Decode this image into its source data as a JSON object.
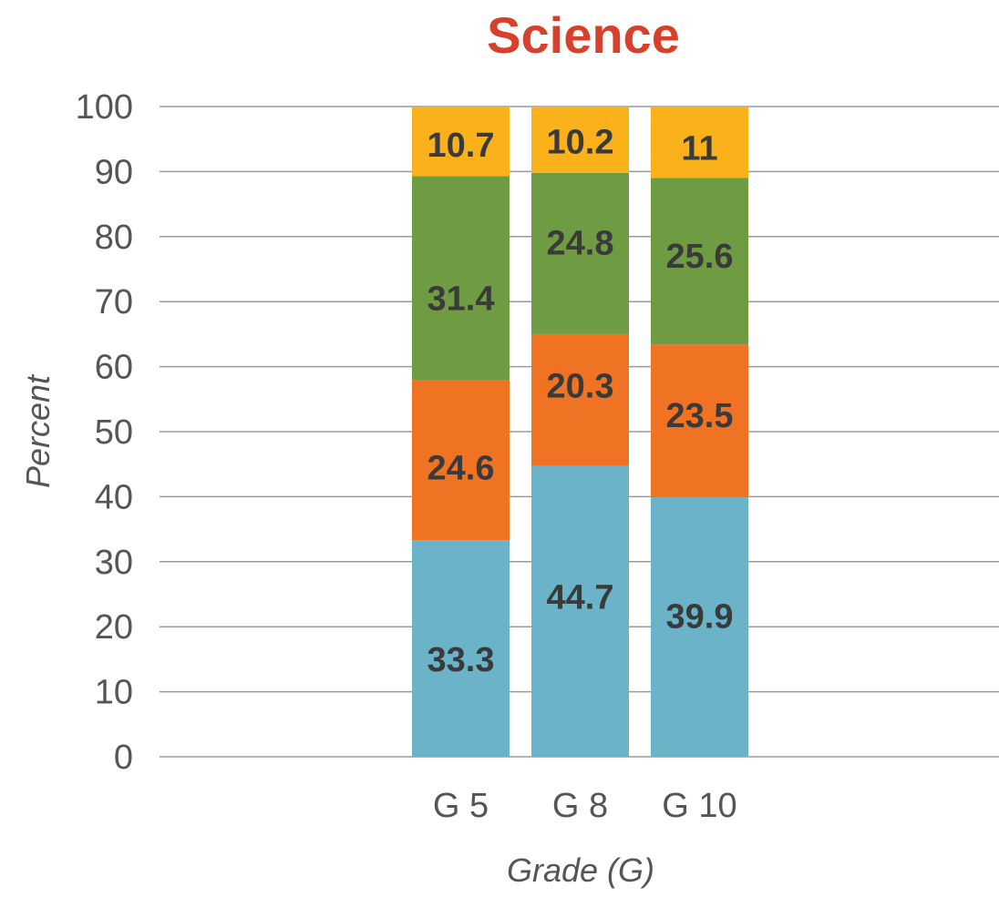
{
  "chart_data": {
    "type": "bar",
    "stacked": true,
    "title": "Science",
    "xlabel": "Grade (G)",
    "ylabel": "Percent",
    "categories": [
      "G 5",
      "G 8",
      "G 10"
    ],
    "ylim": [
      0,
      100
    ],
    "yticks": [
      0,
      10,
      20,
      30,
      40,
      50,
      60,
      70,
      80,
      90,
      100
    ],
    "grid": true,
    "legend": false,
    "series": [
      {
        "values": [
          33.3,
          44.7,
          39.9
        ],
        "labels": [
          "33.3",
          "44.7",
          "39.9"
        ],
        "color": "#6ab3c8"
      },
      {
        "values": [
          24.6,
          20.3,
          23.5
        ],
        "labels": [
          "24.6",
          "20.3",
          "23.5"
        ],
        "color": "#f07324"
      },
      {
        "values": [
          31.4,
          24.8,
          25.6
        ],
        "labels": [
          "31.4",
          "24.8",
          "25.6"
        ],
        "color": "#6f9c42"
      },
      {
        "values": [
          10.7,
          10.2,
          11.0
        ],
        "labels": [
          "10.7",
          "10.2",
          "11"
        ],
        "color": "#fbb21a"
      }
    ],
    "colors": {
      "title": "#d9402b"
    }
  }
}
